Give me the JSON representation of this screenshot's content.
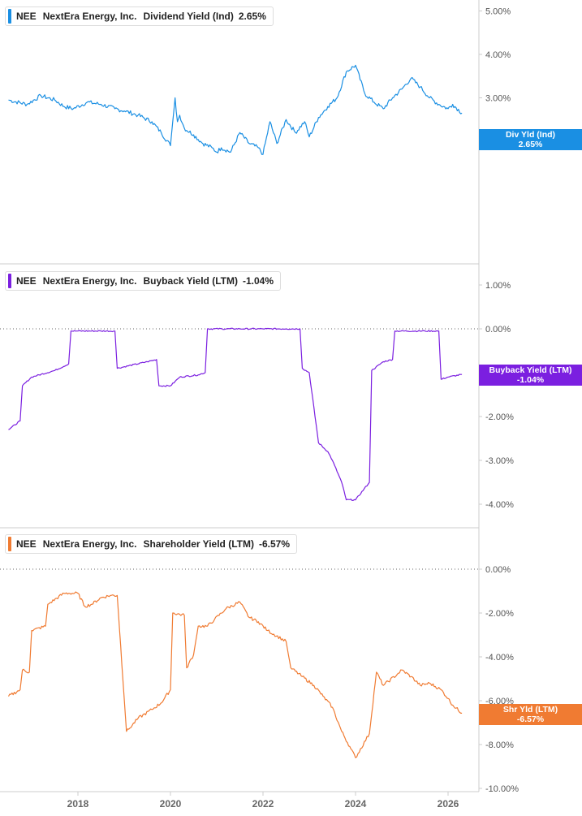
{
  "ticker": "NEE",
  "company": "NextEra Energy, Inc.",
  "x_axis": {
    "ticks": [
      "2018",
      "2020",
      "2022",
      "2024",
      "2026"
    ]
  },
  "panels": [
    {
      "id": "div",
      "color": "#1a8fe3",
      "legend": {
        "metric": "Dividend Yield (Ind)",
        "value": "2.65%"
      },
      "badge": {
        "line1": "Div Yld (Ind)",
        "line2": "2.65%"
      },
      "y_ticks": [
        "5.00%",
        "4.00%",
        "3.00%",
        "2.00%"
      ]
    },
    {
      "id": "buy",
      "color": "#7b1fe0",
      "legend": {
        "metric": "Buyback Yield (LTM)",
        "value": "-1.04%"
      },
      "badge": {
        "line1": "Buyback Yield (LTM)",
        "line2": "-1.04%"
      },
      "y_ticks": [
        "1.00%",
        "0.00%",
        "-2.00%",
        "-3.00%",
        "-4.00%"
      ]
    },
    {
      "id": "shr",
      "color": "#f07b32",
      "legend": {
        "metric": "Shareholder Yield (LTM)",
        "value": "-6.57%"
      },
      "badge": {
        "line1": "Shr Yld (LTM)",
        "line2": "-6.57%"
      },
      "y_ticks": [
        "0.00%",
        "-2.00%",
        "-4.00%",
        "-6.00%",
        "-8.00%",
        "-10.00%"
      ]
    }
  ],
  "chart_data": [
    {
      "type": "line",
      "series": [
        {
          "name": "Dividend Yield (Ind)",
          "color": "#1a8fe3",
          "x": [
            2016.5,
            2016.9,
            2017.2,
            2017.5,
            2017.7,
            2017.9,
            2018.2,
            2018.5,
            2018.8,
            2019.0,
            2019.3,
            2019.6,
            2019.8,
            2020.0,
            2020.1,
            2020.15,
            2020.2,
            2020.3,
            2020.5,
            2020.7,
            2020.9,
            2021.0,
            2021.1,
            2021.3,
            2021.5,
            2021.7,
            2021.9,
            2022.0,
            2022.15,
            2022.3,
            2022.5,
            2022.7,
            2022.9,
            2023.0,
            2023.2,
            2023.4,
            2023.6,
            2023.8,
            2024.0,
            2024.2,
            2024.4,
            2024.6,
            2024.8,
            2025.0,
            2025.2,
            2025.4,
            2025.6,
            2025.8,
            2026.0,
            2026.1,
            2026.3
          ],
          "y": [
            2.95,
            2.85,
            3.05,
            2.95,
            2.8,
            2.75,
            2.9,
            2.85,
            2.75,
            2.7,
            2.6,
            2.45,
            2.2,
            1.9,
            3.0,
            2.45,
            2.6,
            2.3,
            2.15,
            1.95,
            1.85,
            1.75,
            1.85,
            1.75,
            2.2,
            1.95,
            1.85,
            1.7,
            2.45,
            1.95,
            2.5,
            2.2,
            2.45,
            2.1,
            2.55,
            2.8,
            3.0,
            3.6,
            3.75,
            3.1,
            2.9,
            2.75,
            3.0,
            3.2,
            3.45,
            3.25,
            3.0,
            2.85,
            2.75,
            2.85,
            2.65
          ]
        }
      ]
    },
    {
      "type": "line",
      "series": [
        {
          "name": "Buyback Yield (LTM)",
          "color": "#7b1fe0",
          "x": [
            2016.5,
            2016.75,
            2016.8,
            2017.0,
            2017.5,
            2017.8,
            2017.85,
            2018.0,
            2018.5,
            2018.8,
            2018.85,
            2019.5,
            2019.7,
            2019.75,
            2020.0,
            2020.1,
            2020.2,
            2020.6,
            2020.75,
            2020.8,
            2021.5,
            2022.0,
            2022.5,
            2022.8,
            2022.85,
            2023.0,
            2023.2,
            2023.4,
            2023.5,
            2023.7,
            2023.8,
            2024.0,
            2024.3,
            2024.35,
            2024.6,
            2024.8,
            2024.85,
            2025.5,
            2025.8,
            2025.85,
            2026.0,
            2026.3
          ],
          "y": [
            -2.3,
            -2.1,
            -1.3,
            -1.1,
            -0.95,
            -0.8,
            -0.05,
            -0.05,
            -0.05,
            -0.05,
            -0.9,
            -0.75,
            -0.7,
            -1.3,
            -1.3,
            -1.2,
            -1.1,
            -1.05,
            -1.0,
            0.0,
            0.0,
            0.0,
            0.0,
            0.0,
            -0.9,
            -1.0,
            -2.6,
            -2.8,
            -3.0,
            -3.5,
            -3.9,
            -3.9,
            -3.5,
            -0.95,
            -0.75,
            -0.7,
            -0.05,
            -0.05,
            -0.05,
            -1.15,
            -1.1,
            -1.04
          ]
        }
      ]
    },
    {
      "type": "line",
      "series": [
        {
          "name": "Shareholder Yield (LTM)",
          "color": "#f07b32",
          "x": [
            2016.5,
            2016.75,
            2016.8,
            2016.95,
            2017.0,
            2017.3,
            2017.35,
            2017.7,
            2017.8,
            2018.0,
            2018.15,
            2018.3,
            2018.5,
            2018.7,
            2018.85,
            2019.05,
            2019.1,
            2019.3,
            2019.6,
            2019.8,
            2020.0,
            2020.05,
            2020.3,
            2020.35,
            2020.5,
            2020.6,
            2020.8,
            2020.95,
            2021.2,
            2021.5,
            2021.7,
            2021.9,
            2022.1,
            2022.5,
            2022.6,
            2022.85,
            2023.1,
            2023.3,
            2023.5,
            2023.7,
            2023.9,
            2024.0,
            2024.3,
            2024.45,
            2024.6,
            2024.9,
            2025.0,
            2025.2,
            2025.4,
            2025.6,
            2025.85,
            2026.0,
            2026.1,
            2026.3
          ],
          "y": [
            -5.8,
            -5.5,
            -4.6,
            -4.7,
            -2.8,
            -2.6,
            -1.6,
            -1.1,
            -1.1,
            -1.1,
            -1.7,
            -1.6,
            -1.3,
            -1.2,
            -1.2,
            -7.4,
            -7.3,
            -6.8,
            -6.4,
            -6.1,
            -5.5,
            -2.0,
            -2.1,
            -4.5,
            -3.9,
            -2.6,
            -2.6,
            -2.3,
            -1.8,
            -1.5,
            -2.2,
            -2.4,
            -2.8,
            -3.3,
            -4.5,
            -4.9,
            -5.3,
            -5.8,
            -6.3,
            -7.4,
            -8.2,
            -8.6,
            -7.5,
            -4.7,
            -5.3,
            -4.8,
            -4.6,
            -4.9,
            -5.3,
            -5.2,
            -5.5,
            -5.9,
            -6.2,
            -6.57
          ]
        }
      ]
    }
  ]
}
